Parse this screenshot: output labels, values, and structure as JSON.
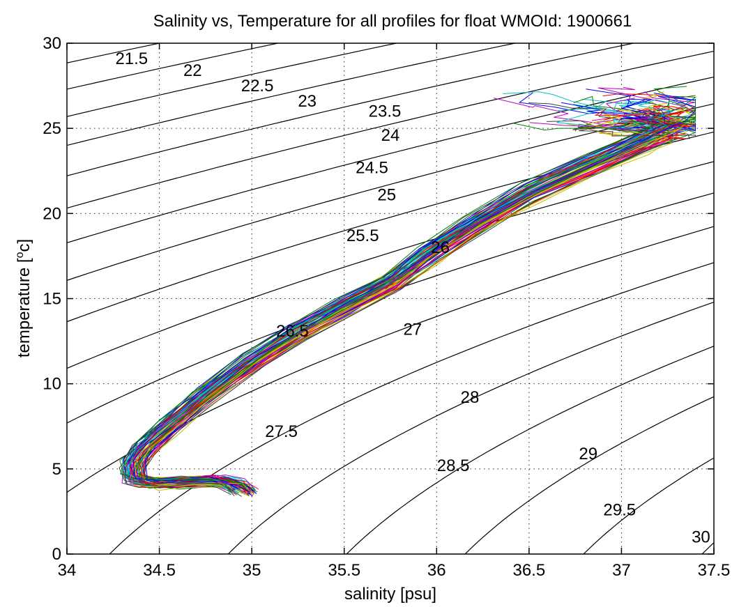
{
  "chart_data": {
    "type": "line",
    "title": "Salinity vs, Temperature for all profiles for float WMOId: 1900661",
    "xlabel": "salinity [psu]",
    "ylabel": "temperature [°c]",
    "xlim": [
      34,
      37.5
    ],
    "ylim": [
      0,
      30
    ],
    "xticks": [
      "34",
      "34.5",
      "35",
      "35.5",
      "36",
      "36.5",
      "37",
      "37.5"
    ],
    "yticks": [
      "0",
      "5",
      "10",
      "15",
      "20",
      "25",
      "30"
    ],
    "grid": true,
    "legend": "none",
    "isopycnals": {
      "description_key": "potential density anomaly contours",
      "labels": [
        {
          "text": "21.5",
          "s": 34.35,
          "t": 29.1
        },
        {
          "text": "22",
          "s": 34.68,
          "t": 28.4
        },
        {
          "text": "22.5",
          "s": 35.03,
          "t": 27.5
        },
        {
          "text": "23",
          "s": 35.3,
          "t": 26.6
        },
        {
          "text": "23.5",
          "s": 35.72,
          "t": 26.0
        },
        {
          "text": "24",
          "s": 35.75,
          "t": 24.6
        },
        {
          "text": "24.5",
          "s": 35.65,
          "t": 22.7
        },
        {
          "text": "25",
          "s": 35.73,
          "t": 21.1
        },
        {
          "text": "25.5",
          "s": 35.6,
          "t": 18.7
        },
        {
          "text": "26",
          "s": 36.02,
          "t": 18.0
        },
        {
          "text": "26.5",
          "s": 35.22,
          "t": 13.1
        },
        {
          "text": "27",
          "s": 35.87,
          "t": 13.2
        },
        {
          "text": "27.5",
          "s": 35.16,
          "t": 7.2
        },
        {
          "text": "28",
          "s": 36.18,
          "t": 9.2
        },
        {
          "text": "28.5",
          "s": 36.09,
          "t": 5.2
        },
        {
          "text": "29",
          "s": 36.82,
          "t": 5.9
        },
        {
          "text": "29.5",
          "s": 36.99,
          "t": 2.6
        },
        {
          "text": "30",
          "s": 37.43,
          "t": 1.0
        }
      ],
      "sigma_levels": [
        21.5,
        22,
        22.5,
        23,
        23.5,
        24,
        24.5,
        25,
        25.5,
        26,
        26.5,
        27,
        27.5,
        28,
        28.5,
        29,
        29.5,
        30
      ]
    },
    "series_style": {
      "colors": [
        "#0000ff",
        "#008000",
        "#ff0000",
        "#00bfbf",
        "#bf00bf",
        "#bfbf00",
        "#404040"
      ],
      "profile_count": 72
    },
    "mean_profile": {
      "salinity": [
        34.96,
        34.9,
        34.8,
        34.6,
        34.45,
        34.37,
        34.36,
        34.42,
        34.55,
        34.75,
        35.0,
        35.25,
        35.5,
        35.75,
        35.95,
        36.2,
        36.5,
        36.85,
        37.1,
        37.25
      ],
      "temperature": [
        3.6,
        4.1,
        4.3,
        4.2,
        4.1,
        4.4,
        5.3,
        6.2,
        7.5,
        9.3,
        11.3,
        13.0,
        14.5,
        15.9,
        17.5,
        19.3,
        21.2,
        22.9,
        24.1,
        24.9
      ]
    }
  }
}
